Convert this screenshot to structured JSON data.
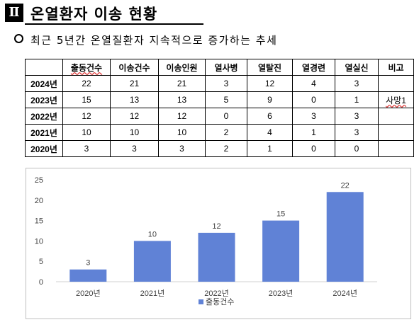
{
  "section": {
    "number": "Ⅱ",
    "title": "온열환자 이송 현황"
  },
  "subheading": "최근 5년간 온열질환자 지속적으로 증가하는 추세",
  "table": {
    "headers": [
      "",
      "출동건수",
      "이송건수",
      "이송인원",
      "열사병",
      "열탈진",
      "열경련",
      "열실신",
      "비고"
    ],
    "rows": [
      {
        "year": "2024년",
        "cells": [
          "22",
          "21",
          "21",
          "3",
          "12",
          "4",
          "3",
          ""
        ]
      },
      {
        "year": "2023년",
        "cells": [
          "15",
          "13",
          "13",
          "5",
          "9",
          "0",
          "1",
          "사망1"
        ]
      },
      {
        "year": "2022년",
        "cells": [
          "12",
          "12",
          "12",
          "0",
          "6",
          "3",
          "3",
          ""
        ]
      },
      {
        "year": "2021년",
        "cells": [
          "10",
          "10",
          "10",
          "2",
          "4",
          "1",
          "3",
          ""
        ]
      },
      {
        "year": "2020년",
        "cells": [
          "3",
          "3",
          "3",
          "2",
          "1",
          "0",
          "0",
          ""
        ]
      }
    ]
  },
  "chart_data": {
    "type": "bar",
    "categories": [
      "2020년",
      "2021년",
      "2022년",
      "2023년",
      "2024년"
    ],
    "series": [
      {
        "name": "출동건수",
        "values": [
          3,
          10,
          12,
          15,
          22
        ]
      }
    ],
    "ylim": [
      0,
      25
    ],
    "yticks": [
      0,
      5,
      10,
      15,
      20,
      25
    ],
    "grid": false,
    "legend": "bottom",
    "data_labels": true,
    "bar_color": "#6082D6"
  }
}
